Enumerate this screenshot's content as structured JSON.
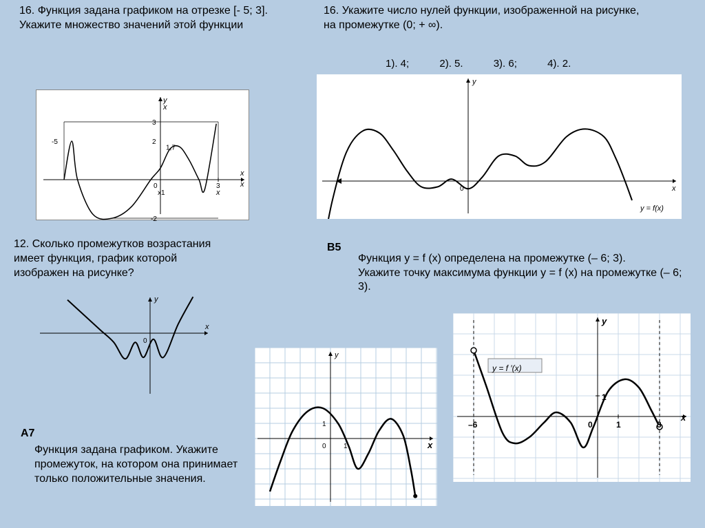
{
  "q1": {
    "title": "16. Функция задана графиком на отрезке [- 5; 3].  Укажите множество значений  этой  функции",
    "graph": {
      "bg": "#ffffff",
      "axis_color": "#000000",
      "stroke": "#000000",
      "stroke_width": 1.5,
      "x_range": [
        -5.5,
        4
      ],
      "y_range": [
        -2.5,
        3.5
      ],
      "labels": {
        "y": "y",
        "x": "x",
        "x2": "x",
        "minus5": "-5",
        "three": "3",
        "two": "2",
        "onept7": "1,7",
        "zero": "0",
        "x1": "x1",
        "threeX": "3",
        "xsm": "x",
        "minus2": "-2"
      },
      "path_points": [
        [
          -5,
          0
        ],
        [
          -4.6,
          2
        ],
        [
          -4.3,
          0
        ],
        [
          -3.5,
          -1.8
        ],
        [
          -2.5,
          -2
        ],
        [
          -1.5,
          -1.4
        ],
        [
          -0.5,
          0
        ],
        [
          0,
          0.6
        ],
        [
          0.5,
          1.6
        ],
        [
          1,
          1.7
        ],
        [
          1.5,
          1
        ],
        [
          2,
          0
        ],
        [
          2.3,
          -0.5
        ],
        [
          2.9,
          2.9
        ]
      ]
    }
  },
  "q2": {
    "title": "16. Укажите число нулей функции, изображенной на рисунке, на промежутке (0; + ∞).",
    "answers_label_1": "1). 4;",
    "answers_label_2": "2). 5.",
    "answers_label_3": "3). 6;",
    "answers_label_4": "4). 2.",
    "graph": {
      "bg": "#ffffff",
      "axis_color": "#000000",
      "stroke": "#000000",
      "stroke_width": 2,
      "y_label": "y",
      "x_label": "x",
      "zero": "0",
      "fn_label": "y = f(x)",
      "path_points": [
        [
          -6.2,
          -3.5
        ],
        [
          -5.8,
          -1
        ],
        [
          -5.2,
          1.5
        ],
        [
          -4.5,
          2.6
        ],
        [
          -3.8,
          2.5
        ],
        [
          -3.2,
          1.6
        ],
        [
          -2.6,
          0.5
        ],
        [
          -2,
          -0.3
        ],
        [
          -1.3,
          -0.3
        ],
        [
          -0.7,
          0.1
        ],
        [
          0,
          -0.4
        ],
        [
          0.6,
          0.2
        ],
        [
          1.3,
          1.3
        ],
        [
          2,
          1.3
        ],
        [
          2.6,
          0.8
        ],
        [
          3.3,
          1
        ],
        [
          4.2,
          2.3
        ],
        [
          5,
          2.7
        ],
        [
          5.8,
          2.3
        ],
        [
          6.3,
          1.2
        ],
        [
          6.7,
          0
        ],
        [
          7,
          -1
        ]
      ]
    }
  },
  "q3": {
    "title": "12. Сколько промежутков возрастания имеет функция, график  которой изображен на рисунке?",
    "graph": {
      "bg": "#ffffff",
      "axis_color": "#000000",
      "stroke": "#000000",
      "stroke_width": 2,
      "y_label": "y",
      "x_label": "x",
      "zero": "0",
      "path_points": [
        [
          -5,
          2.2
        ],
        [
          -4,
          1.2
        ],
        [
          -3,
          0.2
        ],
        [
          -2.2,
          -0.6
        ],
        [
          -1.5,
          -1.7
        ],
        [
          -0.9,
          -0.6
        ],
        [
          -0.4,
          -1.6
        ],
        [
          0.2,
          -0.4
        ],
        [
          0.8,
          -1.6
        ],
        [
          1.7,
          0.6
        ],
        [
          2.6,
          2.4
        ]
      ]
    }
  },
  "a7": {
    "tag": "A7",
    "text": "Функция задана графиком. Укажите промежуток, на котором она принимает только положительные значения.",
    "graph": {
      "bg": "#ffffff",
      "grid_color": "#b6cce2",
      "axis_color": "#000000",
      "stroke": "#000000",
      "stroke_width": 2.5,
      "y_label": "y",
      "x_label": "x",
      "zero": "0",
      "one": "1",
      "one_x": "1",
      "path_points": [
        [
          -4,
          -3.5
        ],
        [
          -3.3,
          -1.5
        ],
        [
          -2.5,
          0.5
        ],
        [
          -1.5,
          1.8
        ],
        [
          -0.5,
          2
        ],
        [
          0.5,
          1
        ],
        [
          1.2,
          -0.5
        ],
        [
          1.8,
          -2
        ],
        [
          2.5,
          -1
        ],
        [
          3.2,
          0.5
        ],
        [
          4,
          1.3
        ],
        [
          4.8,
          0.2
        ],
        [
          5.3,
          -2
        ],
        [
          5.6,
          -3.8
        ]
      ]
    }
  },
  "b5": {
    "tag": "B5",
    "text": "Функция y = f (x) определена на промежутке (– 6;  3).\nУкажите точку максимума функции  y = f (x) на промежутке (– 6;  3).",
    "graph": {
      "bg": "#ffffff",
      "grid_color": "#c8d8e8",
      "axis_color": "#000000",
      "stroke": "#000000",
      "stroke_width": 2.5,
      "y_label": "y",
      "x_label": "x",
      "zero": "0",
      "one": "1",
      "one_x": "1",
      "minus6": "–6",
      "three": "3",
      "fn_label": "y = f ′(x)",
      "path_points": [
        [
          -6,
          3.2
        ],
        [
          -5.4,
          1.5
        ],
        [
          -4.6,
          -0.8
        ],
        [
          -4,
          -1.3
        ],
        [
          -3.3,
          -1
        ],
        [
          -2.6,
          -0.3
        ],
        [
          -2,
          0.2
        ],
        [
          -1.3,
          -0.3
        ],
        [
          -0.7,
          -1.5
        ],
        [
          -0.2,
          -0.5
        ],
        [
          0.5,
          1.2
        ],
        [
          1.3,
          1.8
        ],
        [
          2,
          1.4
        ],
        [
          2.6,
          0.3
        ],
        [
          3,
          -0.5
        ]
      ]
    }
  }
}
